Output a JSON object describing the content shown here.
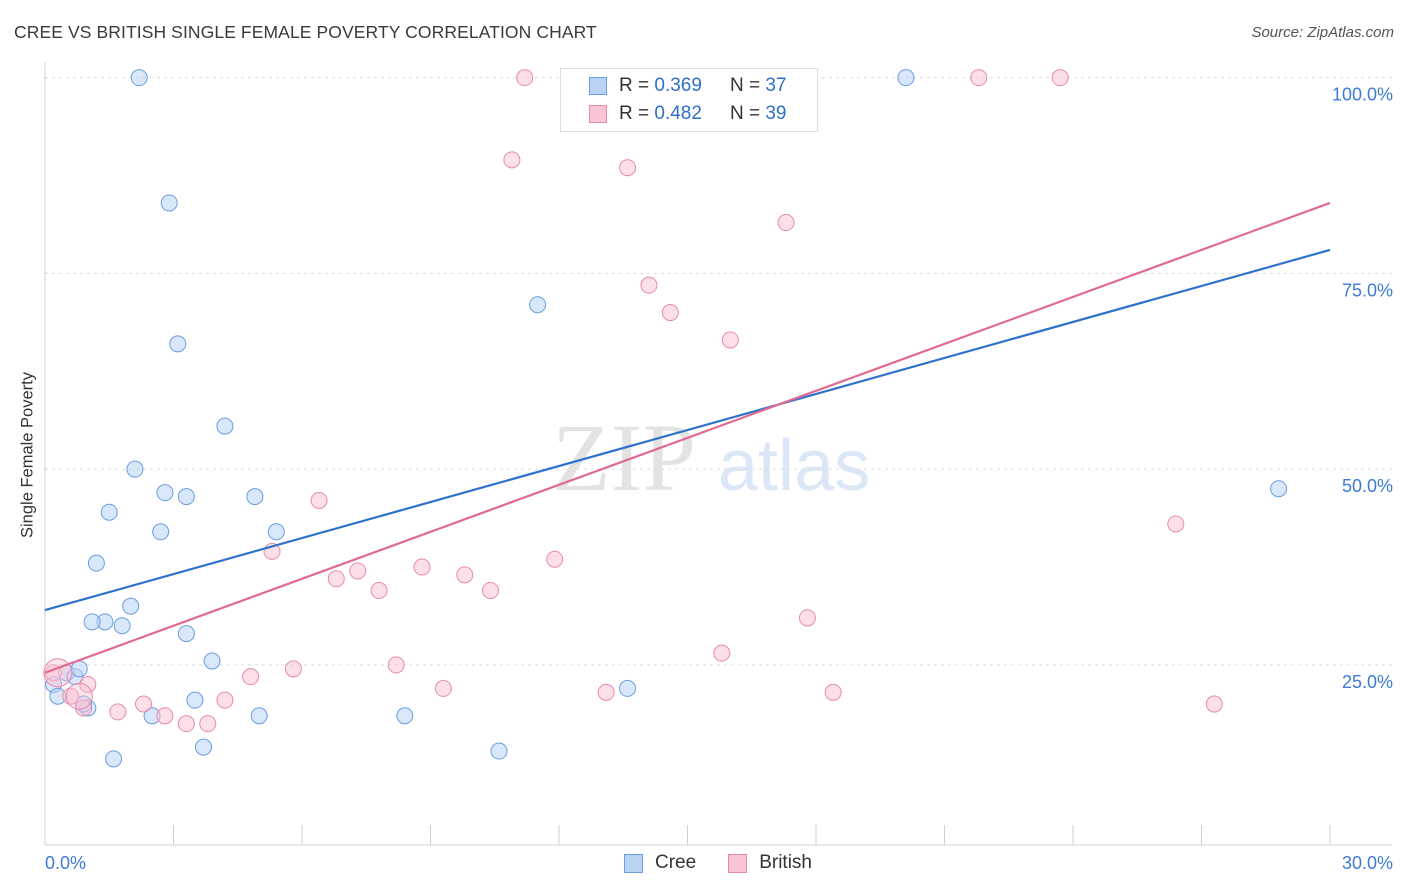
{
  "title": "CREE VS BRITISH SINGLE FEMALE POVERTY CORRELATION CHART",
  "source": "Source: ZipAtlas.com",
  "watermark": {
    "zip": "ZIP",
    "atlas": "atlas"
  },
  "legend": {
    "r_label": "R =",
    "n_label": "N =",
    "series": [
      {
        "r": "0.369",
        "n": "37"
      },
      {
        "r": "0.482",
        "n": "39"
      }
    ]
  },
  "bottom_legend": [
    "Cree",
    "British"
  ],
  "colors": {
    "cree_fill": "#b9d3f5",
    "cree_stroke": "#6a9de0",
    "cree_line": "#2f72cc",
    "british_fill": "#f9c4d5",
    "british_stroke": "#e98aa9",
    "british_line": "#e06a92",
    "axis_text": "#3d7bd4",
    "grid": "#dcdcdc"
  },
  "chart_data": {
    "type": "scatter",
    "title": "CREE VS BRITISH SINGLE FEMALE POVERTY CORRELATION CHART",
    "xlabel": "",
    "ylabel": "Single Female Poverty",
    "xlim": [
      0,
      30
    ],
    "ylim": [
      2,
      102
    ],
    "x_tick_labels": [
      "0.0%",
      "30.0%"
    ],
    "y_ticks": [
      25,
      50,
      75,
      100
    ],
    "y_tick_labels": [
      "25.0%",
      "50.0%",
      "75.0%",
      "100.0%"
    ],
    "grid": true,
    "legend_position": "top-center",
    "series": [
      {
        "name": "Cree",
        "points": [
          [
            0.2,
            22.5
          ],
          [
            0.3,
            21
          ],
          [
            0.5,
            24
          ],
          [
            0.7,
            23.5
          ],
          [
            0.8,
            24.5
          ],
          [
            1.0,
            19.5
          ],
          [
            1.2,
            38
          ],
          [
            1.4,
            30.5
          ],
          [
            1.5,
            44.5
          ],
          [
            1.6,
            13
          ],
          [
            1.8,
            30
          ],
          [
            2.0,
            32.5
          ],
          [
            2.1,
            50
          ],
          [
            2.2,
            100
          ],
          [
            2.5,
            18.5
          ],
          [
            2.7,
            42
          ],
          [
            2.8,
            47
          ],
          [
            2.9,
            84
          ],
          [
            3.1,
            66
          ],
          [
            3.3,
            29
          ],
          [
            3.3,
            46.5
          ],
          [
            3.5,
            20.5
          ],
          [
            3.7,
            14.5
          ],
          [
            3.9,
            25.5
          ],
          [
            4.2,
            55.5
          ],
          [
            4.9,
            46.5
          ],
          [
            5.0,
            18.5
          ],
          [
            5.4,
            42
          ],
          [
            8.4,
            18.5
          ],
          [
            10.6,
            14
          ],
          [
            11.5,
            71
          ],
          [
            13.6,
            22
          ],
          [
            14.2,
            100
          ],
          [
            20.1,
            100
          ],
          [
            28.8,
            47.5
          ],
          [
            1.1,
            30.5
          ],
          [
            0.9,
            20
          ]
        ],
        "trend": {
          "x": [
            0,
            30
          ],
          "y": [
            32,
            78
          ]
        }
      },
      {
        "name": "British",
        "points": [
          [
            0.2,
            24
          ],
          [
            0.6,
            21
          ],
          [
            0.9,
            19.5
          ],
          [
            1.0,
            22.5
          ],
          [
            1.7,
            19
          ],
          [
            2.3,
            20
          ],
          [
            2.8,
            18.5
          ],
          [
            3.3,
            17.5
          ],
          [
            3.8,
            17.5
          ],
          [
            4.2,
            20.5
          ],
          [
            4.8,
            23.5
          ],
          [
            5.3,
            39.5
          ],
          [
            5.8,
            24.5
          ],
          [
            6.4,
            46
          ],
          [
            6.8,
            36
          ],
          [
            7.3,
            37
          ],
          [
            7.8,
            34.5
          ],
          [
            8.2,
            25
          ],
          [
            8.8,
            37.5
          ],
          [
            9.3,
            22
          ],
          [
            9.8,
            36.5
          ],
          [
            10.4,
            34.5
          ],
          [
            10.9,
            89.5
          ],
          [
            11.2,
            100
          ],
          [
            11.9,
            38.5
          ],
          [
            12.4,
            100
          ],
          [
            13.1,
            21.5
          ],
          [
            13.6,
            88.5
          ],
          [
            14.1,
            73.5
          ],
          [
            14.6,
            70
          ],
          [
            15.8,
            26.5
          ],
          [
            16.0,
            66.5
          ],
          [
            17.3,
            81.5
          ],
          [
            17.8,
            31
          ],
          [
            18.4,
            21.5
          ],
          [
            21.8,
            100
          ],
          [
            23.7,
            100
          ],
          [
            26.4,
            43
          ],
          [
            27.3,
            20
          ]
        ],
        "trend": {
          "x": [
            0,
            30
          ],
          "y": [
            24,
            84
          ]
        }
      }
    ]
  }
}
